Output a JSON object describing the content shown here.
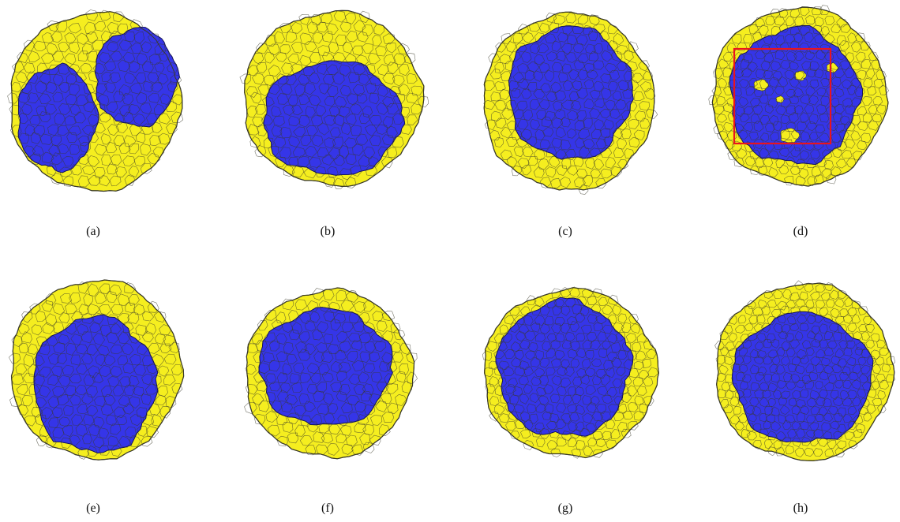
{
  "colors": {
    "outer_tissue": "#f5ee1f",
    "inner_tissue": "#3535e8",
    "cell_border": "#3a3a2a",
    "highlight_box": "#e8141e"
  },
  "panels": [
    {
      "id": "a",
      "caption": "(a)",
      "arrangement": "two separate inner clusters"
    },
    {
      "id": "b",
      "caption": "(b)",
      "arrangement": "single inner cluster"
    },
    {
      "id": "c",
      "caption": "(c)",
      "arrangement": "single inner cluster"
    },
    {
      "id": "d",
      "caption": "(d)",
      "arrangement": "single inner cluster with outer-cell inclusions",
      "highlight_box": true
    },
    {
      "id": "e",
      "caption": "(e)",
      "arrangement": "single inner cluster"
    },
    {
      "id": "f",
      "caption": "(f)",
      "arrangement": "single inner cluster"
    },
    {
      "id": "g",
      "caption": "(g)",
      "arrangement": "single inner cluster"
    },
    {
      "id": "h",
      "caption": "(h)",
      "arrangement": "single inner cluster"
    }
  ]
}
